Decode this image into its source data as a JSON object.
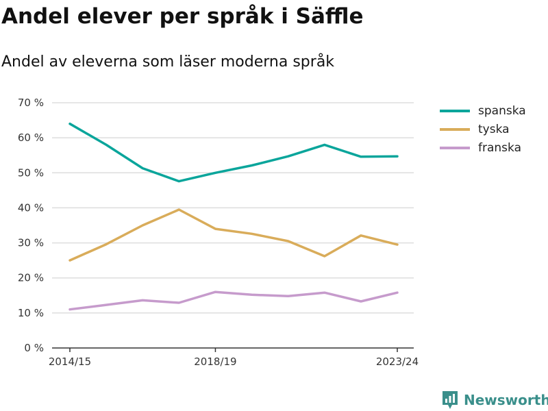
{
  "header": {
    "title": "Andel elever per språk i Säffle",
    "subtitle": "Andel av eleverna som läser moderna språk"
  },
  "brand": {
    "name": "Newsworthy",
    "icon": "newsworthy-logo-icon",
    "color": "#3a8f8b"
  },
  "chart_data": {
    "type": "line",
    "title": "Andel elever per språk i Säffle",
    "subtitle": "Andel av eleverna som läser moderna språk",
    "x": [
      1,
      2,
      3,
      4,
      5,
      6,
      7,
      8,
      9,
      10
    ],
    "x_tick_labels": [
      {
        "x": 1,
        "label": "2014/15"
      },
      {
        "x": 5,
        "label": "2018/19"
      },
      {
        "x": 10,
        "label": "2023/24"
      }
    ],
    "ylim": [
      0,
      70
    ],
    "y_ticks": [
      0,
      10,
      20,
      30,
      40,
      50,
      60,
      70
    ],
    "y_tick_format": "{v} %",
    "grid": true,
    "legend_position": "top-right",
    "series": [
      {
        "name": "spanska",
        "color": "#0aa59b",
        "values": [
          64,
          58,
          51.3,
          47.6,
          50,
          52.1,
          54.7,
          58,
          54.6,
          54.7
        ]
      },
      {
        "name": "tyska",
        "color": "#d9ac5a",
        "values": [
          25,
          29.6,
          35,
          39.5,
          34,
          32.6,
          30.5,
          26.2,
          32.1,
          29.5
        ]
      },
      {
        "name": "franska",
        "color": "#c69bcc",
        "values": [
          11,
          12.3,
          13.6,
          12.9,
          16,
          15.2,
          14.8,
          15.8,
          13.3,
          15.8
        ]
      }
    ]
  }
}
